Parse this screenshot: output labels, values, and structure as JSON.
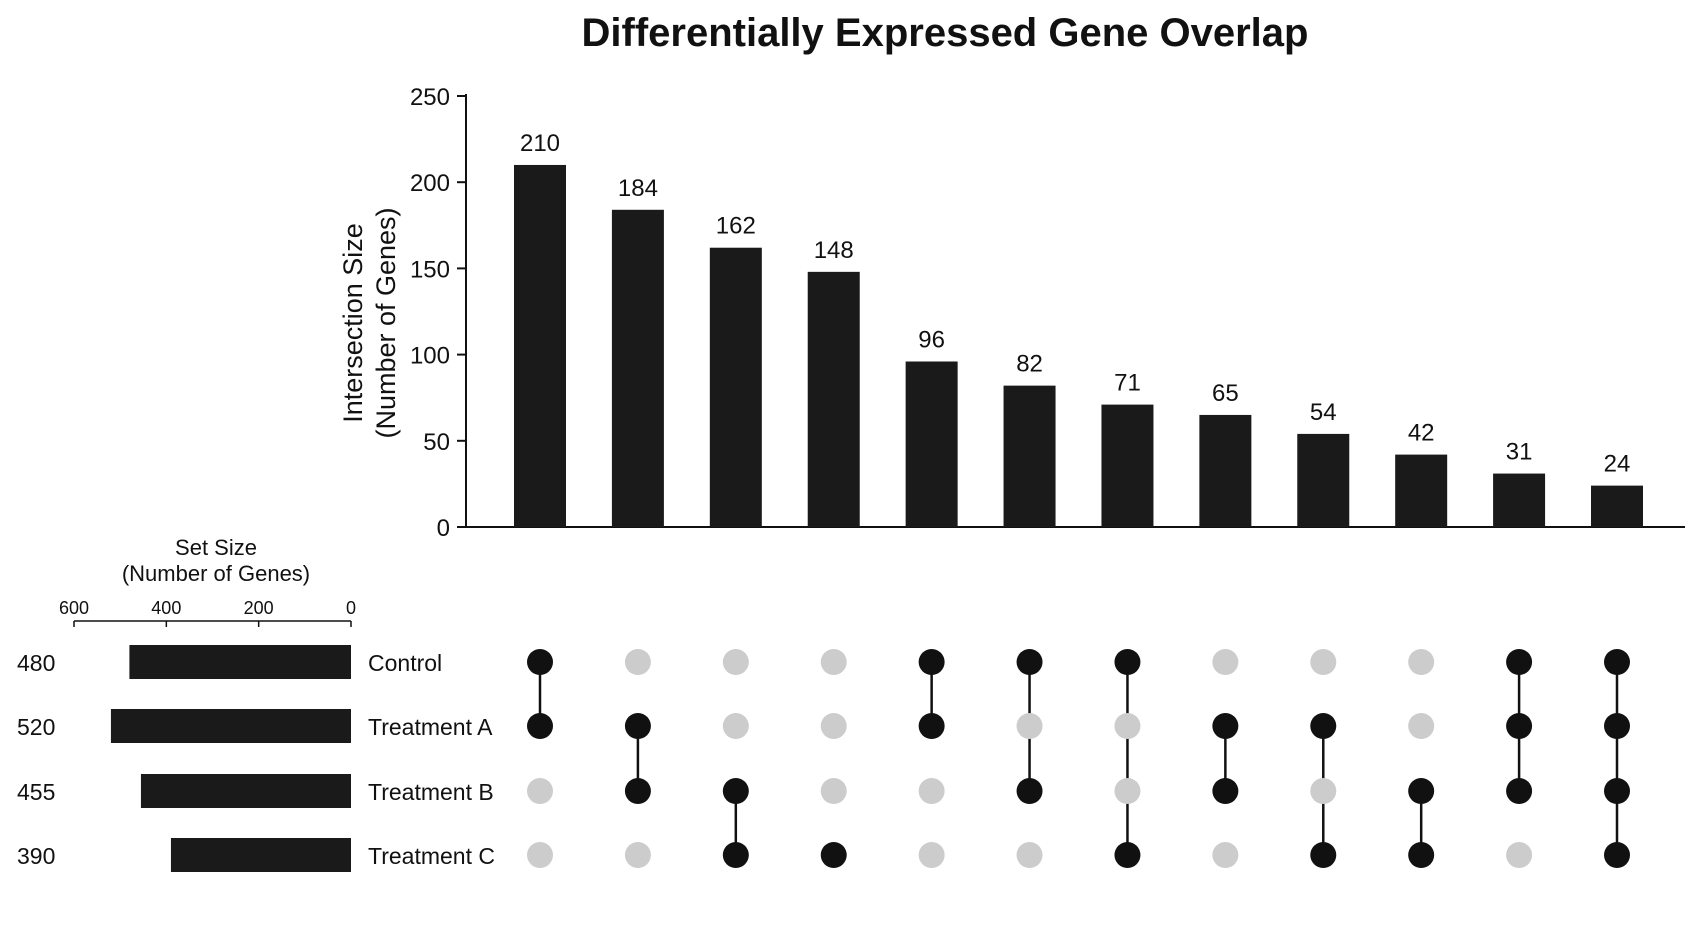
{
  "chart_data": {
    "type": "upset",
    "title": "Differentially Expressed Gene Overlap",
    "intersection_axis": {
      "label_line1": "Intersection Size",
      "label_line2": "(Number of Genes)",
      "ylim": [
        0,
        250
      ],
      "ticks": [
        0,
        50,
        100,
        150,
        200,
        250
      ]
    },
    "intersections": [
      {
        "value": 210,
        "members": [
          "Control",
          "Treatment A"
        ]
      },
      {
        "value": 184,
        "members": [
          "Treatment A",
          "Treatment B"
        ]
      },
      {
        "value": 162,
        "members": [
          "Treatment B",
          "Treatment C"
        ]
      },
      {
        "value": 148,
        "members": [
          "Treatment C"
        ]
      },
      {
        "value": 96,
        "members": [
          "Control",
          "Treatment A"
        ]
      },
      {
        "value": 82,
        "members": [
          "Control",
          "Treatment B"
        ]
      },
      {
        "value": 71,
        "members": [
          "Control",
          "Treatment C"
        ]
      },
      {
        "value": 65,
        "members": [
          "Treatment A",
          "Treatment B"
        ]
      },
      {
        "value": 54,
        "members": [
          "Treatment A",
          "Treatment C"
        ]
      },
      {
        "value": 42,
        "members": [
          "Treatment B",
          "Treatment C"
        ]
      },
      {
        "value": 31,
        "members": [
          "Control",
          "Treatment A",
          "Treatment B"
        ]
      },
      {
        "value": 24,
        "members": [
          "Control",
          "Treatment A",
          "Treatment B",
          "Treatment C"
        ]
      }
    ],
    "set_axis": {
      "label_line1": "Set Size",
      "label_line2": "(Number of Genes)",
      "xlim": [
        600,
        0
      ],
      "ticks": [
        600,
        400,
        200,
        0
      ]
    },
    "sets": [
      {
        "name": "Control",
        "size": 480
      },
      {
        "name": "Treatment A",
        "size": 520
      },
      {
        "name": "Treatment B",
        "size": 455
      },
      {
        "name": "Treatment C",
        "size": 390
      }
    ],
    "colors": {
      "bar": "#1a1a1a",
      "dot_active": "#111111",
      "dot_inactive": "#cccccc",
      "axis": "#111111",
      "background": "#ffffff"
    }
  }
}
